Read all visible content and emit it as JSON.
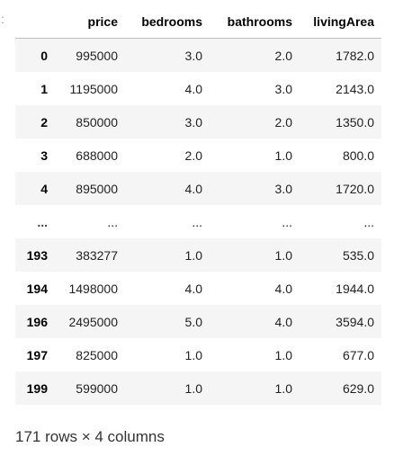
{
  "prompt_marker": ":",
  "table": {
    "columns": [
      "",
      "price",
      "bedrooms",
      "bathrooms",
      "livingArea"
    ],
    "rows": [
      [
        "0",
        "995000",
        "3.0",
        "2.0",
        "1782.0"
      ],
      [
        "1",
        "1195000",
        "4.0",
        "3.0",
        "2143.0"
      ],
      [
        "2",
        "850000",
        "3.0",
        "2.0",
        "1350.0"
      ],
      [
        "3",
        "688000",
        "2.0",
        "1.0",
        "800.0"
      ],
      [
        "4",
        "895000",
        "4.0",
        "3.0",
        "1720.0"
      ],
      [
        "...",
        "...",
        "...",
        "...",
        "..."
      ],
      [
        "193",
        "383277",
        "1.0",
        "1.0",
        "535.0"
      ],
      [
        "194",
        "1498000",
        "4.0",
        "4.0",
        "1944.0"
      ],
      [
        "196",
        "2495000",
        "5.0",
        "4.0",
        "3594.0"
      ],
      [
        "197",
        "825000",
        "1.0",
        "1.0",
        "677.0"
      ],
      [
        "199",
        "599000",
        "1.0",
        "1.0",
        "629.0"
      ]
    ]
  },
  "shape_note": "171 rows × 4 columns"
}
